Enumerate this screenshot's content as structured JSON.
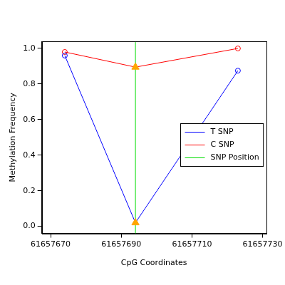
{
  "chart_data": {
    "type": "line",
    "x_label": "CpG Coordinates",
    "y_label": "Methylation Frequency",
    "x": [
      61657674,
      61657694,
      61657723
    ],
    "series": [
      {
        "name": "T SNP",
        "color": "#0000ff",
        "values": [
          0.96,
          0.02,
          0.875
        ],
        "marker": [
          "circle",
          "triangle",
          "circle"
        ],
        "colors": [
          "#0000ff",
          "#ffa500",
          "#0000ff"
        ]
      },
      {
        "name": "C SNP",
        "color": "#ff0000",
        "values": [
          0.98,
          0.895,
          1.0
        ],
        "marker": [
          "circle",
          "triangle",
          "circle"
        ],
        "colors": [
          "#ff0000",
          "#ffa500",
          "#ff0000"
        ]
      }
    ],
    "snp": {
      "name": "SNP Position",
      "x": 61657694,
      "color": "#00dd00"
    },
    "xlim": [
      61657667.5,
      61657731
    ],
    "ylim": [
      -0.04,
      1.04
    ],
    "xticks": [
      61657670,
      61657690,
      61657710,
      61657730
    ],
    "yticks": [
      {
        "value": 0,
        "label": "0.0"
      },
      0.2,
      0.4,
      0.6,
      0.8,
      {
        "value": 1,
        "label": "1.0"
      }
    ],
    "grid": false,
    "legend": "right"
  }
}
